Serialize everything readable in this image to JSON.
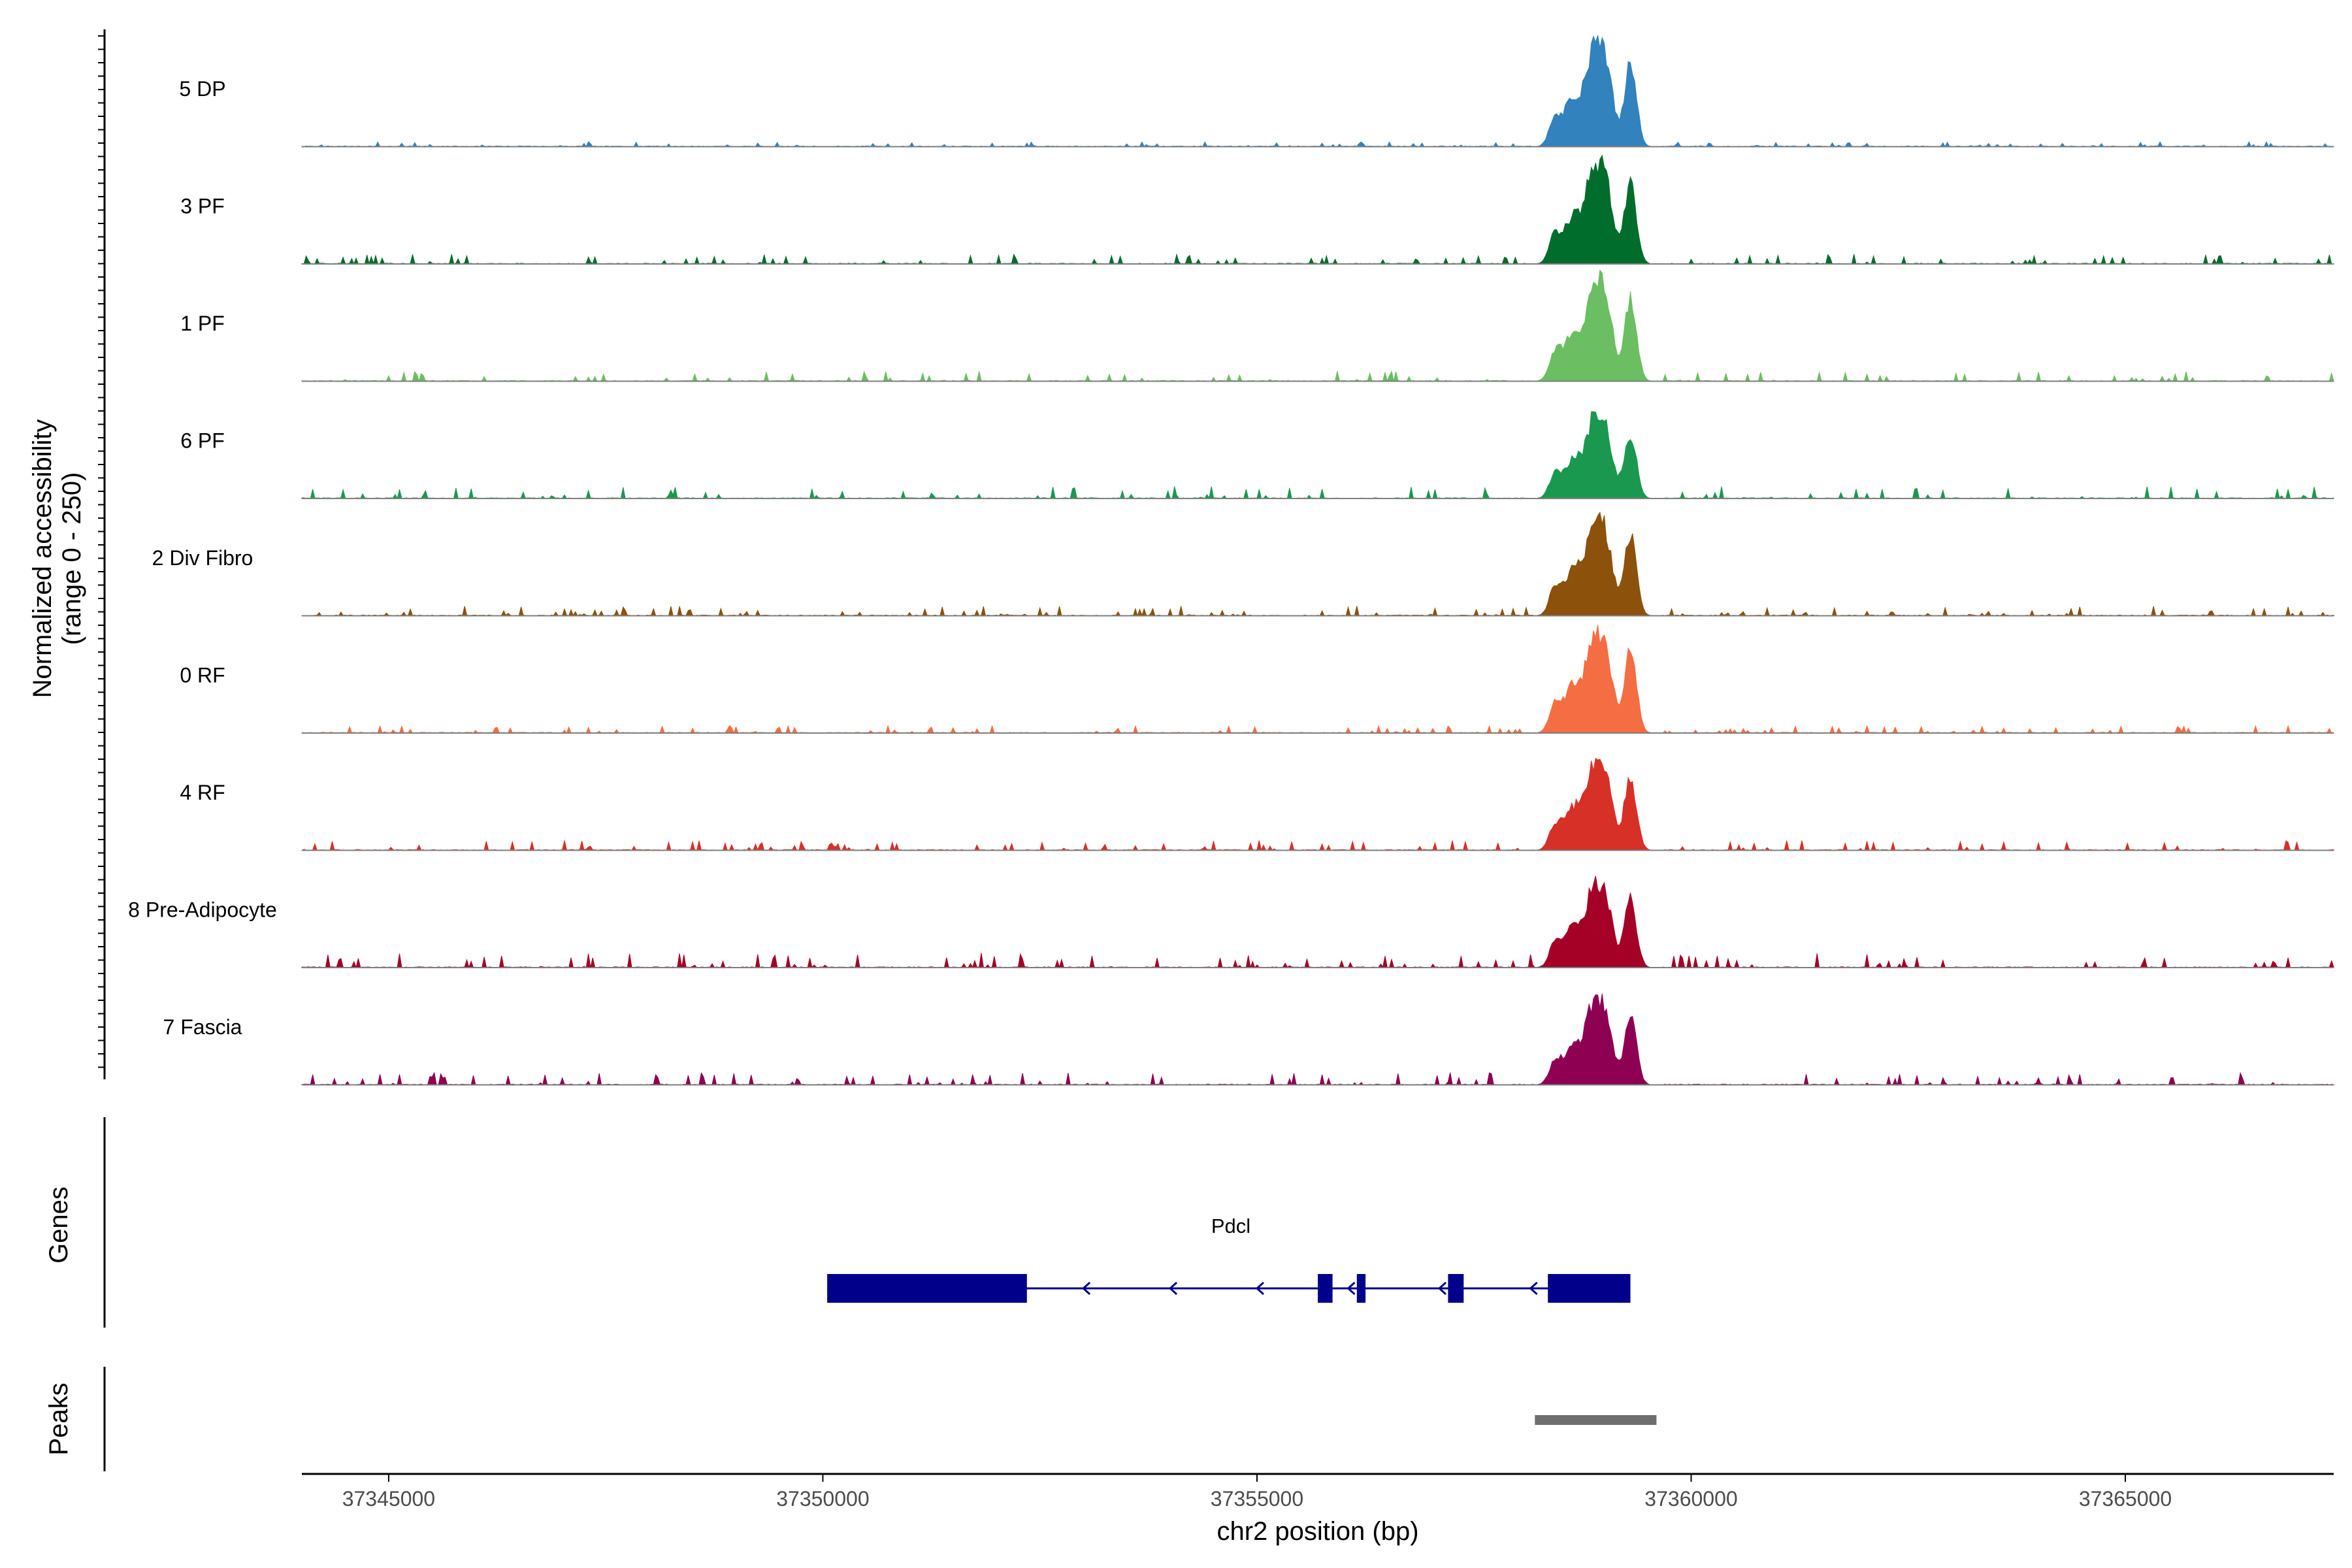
{
  "chart_data": {
    "type": "area",
    "title": "",
    "ylabel": [
      "Normalized accessibility",
      "(range 0 - 250)"
    ],
    "ylim": [
      0,
      250
    ],
    "xlabel": "chr2 position (bp)",
    "xlim": [
      37344000,
      37367400
    ],
    "x_ticks": [
      37345000,
      37350000,
      37355000,
      37360000,
      37365000
    ],
    "x_tick_labels": [
      "37345000",
      "37350000",
      "37355000",
      "37360000",
      "37365000"
    ],
    "series": [
      {
        "name": "5 DP",
        "color": "#3182BD",
        "noise_seed": 5,
        "noise_level": 0.02,
        "main_peak": 240
      },
      {
        "name": "3 PF",
        "color": "#006D2C",
        "noise_seed": 3,
        "noise_level": 0.04,
        "main_peak": 240
      },
      {
        "name": "1 PF",
        "color": "#6BBE61",
        "noise_seed": 1,
        "noise_level": 0.04,
        "main_peak": 240
      },
      {
        "name": "6 PF",
        "color": "#1A9850",
        "noise_seed": 6,
        "noise_level": 0.05,
        "main_peak": 195
      },
      {
        "name": "2 Div Fibro",
        "color": "#8C510A",
        "noise_seed": 2,
        "noise_level": 0.04,
        "main_peak": 230
      },
      {
        "name": "0 RF",
        "color": "#F46D43",
        "noise_seed": 0,
        "noise_level": 0.03,
        "main_peak": 240
      },
      {
        "name": "4 RF",
        "color": "#D73027",
        "noise_seed": 4,
        "noise_level": 0.04,
        "main_peak": 215
      },
      {
        "name": "8 Pre-Adipocyte",
        "color": "#A50026",
        "noise_seed": 8,
        "noise_level": 0.06,
        "main_peak": 200
      },
      {
        "name": "7 Fascia",
        "color": "#8E0152",
        "noise_seed": 7,
        "noise_level": 0.05,
        "main_peak": 200
      }
    ],
    "main_peak_profile": {
      "region": [
        37358200,
        37359650
      ],
      "components": [
        {
          "center": 37358420,
          "width": 60,
          "height": 0.22
        },
        {
          "center": 37358650,
          "width": 130,
          "height": 0.5
        },
        {
          "center": 37358900,
          "width": 90,
          "height": 1.0
        },
        {
          "center": 37359050,
          "width": 70,
          "height": 0.55
        },
        {
          "center": 37359300,
          "width": 70,
          "height": 0.85
        }
      ]
    },
    "genes_track": {
      "label": "Genes",
      "gene_name": "Pdcl",
      "color": "#00008B",
      "strand": "-",
      "span": [
        37350050,
        37359300
      ],
      "exons": [
        [
          37350050,
          37352350
        ],
        [
          37355700,
          37355870
        ],
        [
          37356150,
          37356250
        ],
        [
          37357200,
          37357380
        ],
        [
          37358350,
          37359300
        ]
      ],
      "arrows_at": [
        37353000,
        37354000,
        37355000,
        37356050,
        37357100,
        37358150
      ]
    },
    "peaks_track": {
      "label": "Peaks",
      "color": "#6E6E6E",
      "peaks": [
        [
          37358200,
          37359600
        ]
      ]
    }
  }
}
